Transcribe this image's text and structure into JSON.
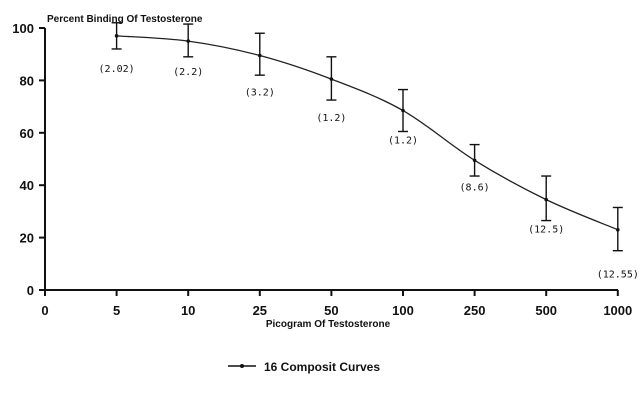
{
  "chart_data": {
    "type": "line",
    "ylabel": "Percent Binding Of Testosterone",
    "xlabel": "Picogram Of Testosterone",
    "categories": [
      "0",
      "5",
      "10",
      "25",
      "50",
      "100",
      "250",
      "500",
      "1000"
    ],
    "y_ticks": [
      "0",
      "20",
      "40",
      "60",
      "80",
      "100"
    ],
    "ylim": [
      0,
      100
    ],
    "grid": false,
    "legend_position": "bottom-center",
    "series": [
      {
        "name": "16 Composit Curves",
        "x": [
          "5",
          "10",
          "25",
          "50",
          "100",
          "250",
          "500",
          "1000"
        ],
        "values": [
          97,
          95,
          89.5,
          80.5,
          68.5,
          49.5,
          34.5,
          23
        ],
        "error_low": [
          92,
          89,
          82,
          72.5,
          60.5,
          43.5,
          26.5,
          15
        ],
        "error_high": [
          102,
          101.5,
          98,
          89,
          76.5,
          55.5,
          43.5,
          31.5
        ],
        "point_labels": [
          "(2.02)",
          "(2.2)",
          "(3.2)",
          "(1.2)",
          "(1.2)",
          "(8.6)",
          "(12.5)",
          "(12.55)"
        ]
      }
    ]
  }
}
